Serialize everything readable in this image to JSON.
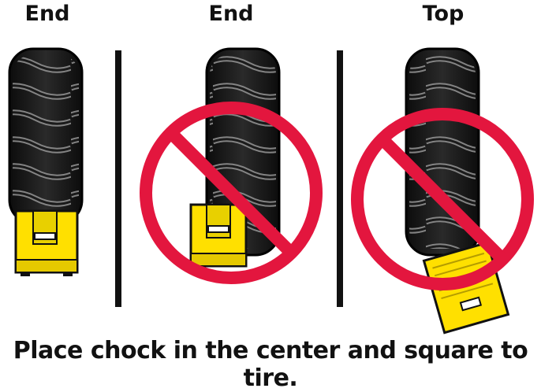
{
  "panels": [
    {
      "label": "End",
      "status": "correct"
    },
    {
      "label": "End",
      "status": "incorrect"
    },
    {
      "label": "Top",
      "status": "incorrect"
    }
  ],
  "caption": "Place chock in the center and square to tire.",
  "colors": {
    "tire": "#1a1a1a",
    "tread_highlight": "#9a9a9a",
    "chock": "#ffe000",
    "chock_outline": "#111111",
    "prohibition": "#e3163e"
  }
}
